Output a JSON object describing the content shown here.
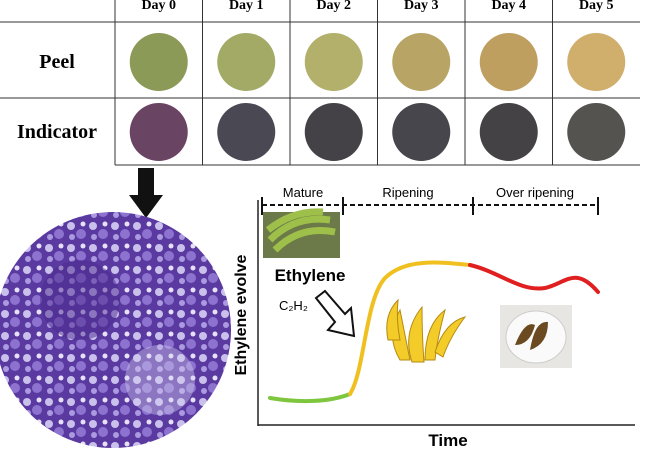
{
  "table": {
    "header": [
      "Day 0",
      "Day 1",
      "Day 2",
      "Day 3",
      "Day 4",
      "Day 5"
    ],
    "rows": [
      {
        "label": "Peel",
        "colors": [
          "#8b9a57",
          "#a3aa66",
          "#b3b06c",
          "#b8a465",
          "#bf9f5f",
          "#d0ae6c"
        ]
      },
      {
        "label": "Indicator",
        "colors": [
          "#6a4563",
          "#4a4853",
          "#444247",
          "#47464c",
          "#444245",
          "#555350"
        ]
      }
    ]
  },
  "diagram": {
    "phases": [
      "Mature",
      "Ripening",
      "Over ripening"
    ],
    "ethylene_label": "Ethylene",
    "gas_label": "C₂H₂",
    "y_axis_label": "Ethylene evolve",
    "x_axis_label": "Time"
  }
}
